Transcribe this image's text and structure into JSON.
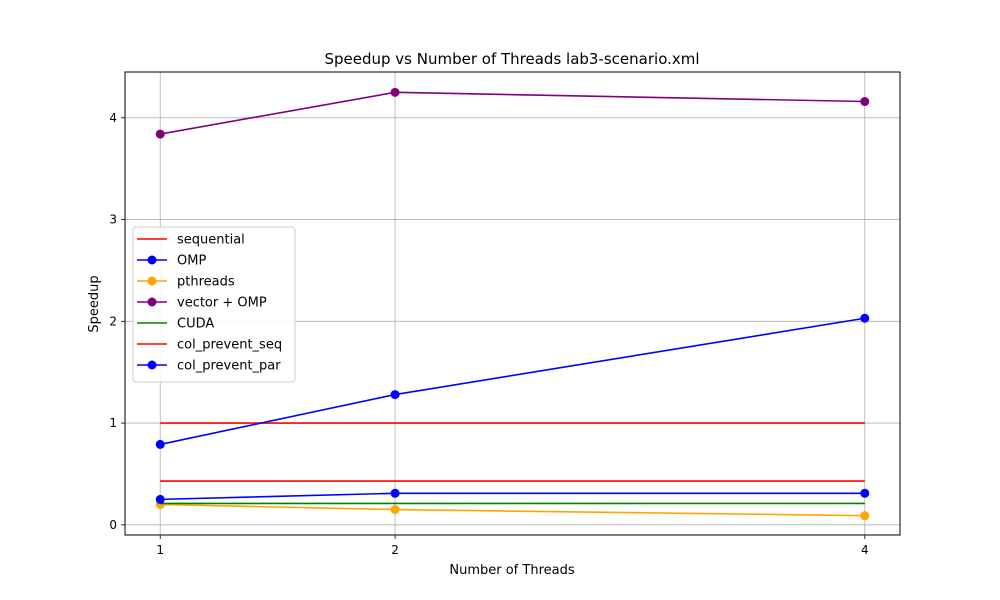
{
  "chart_data": {
    "type": "line",
    "title": "Speedup vs Number of Threads lab3-scenario.xml",
    "xlabel": "Number of Threads",
    "ylabel": "Speedup",
    "x": [
      1,
      2,
      4
    ],
    "xticks": [
      "1",
      "2",
      "4"
    ],
    "yticks": [
      "0",
      "1",
      "2",
      "3",
      "4"
    ],
    "xlim": [
      0.85,
      4.15
    ],
    "ylim": [
      -0.1,
      4.45
    ],
    "grid": true,
    "legend_position": "center-left",
    "series": [
      {
        "name": "sequential",
        "values": [
          1.0,
          1.0,
          1.0
        ],
        "color": "#ff0000",
        "marker": false
      },
      {
        "name": "OMP",
        "values": [
          0.79,
          1.28,
          2.03
        ],
        "color": "#0000ff",
        "marker": true
      },
      {
        "name": "pthreads",
        "values": [
          0.2,
          0.15,
          0.09
        ],
        "color": "#ffa500",
        "marker": true
      },
      {
        "name": "vector + OMP",
        "values": [
          3.84,
          4.25,
          4.16
        ],
        "color": "#800080",
        "marker": true
      },
      {
        "name": "CUDA",
        "values": [
          0.21,
          0.21,
          0.21
        ],
        "color": "#008000",
        "marker": false
      },
      {
        "name": "col_prevent_seq",
        "values": [
          0.43,
          0.43,
          0.43
        ],
        "color": "#ff0000",
        "marker": false
      },
      {
        "name": "col_prevent_par",
        "values": [
          0.25,
          0.31,
          0.31
        ],
        "color": "#0000ff",
        "marker": true
      }
    ]
  }
}
